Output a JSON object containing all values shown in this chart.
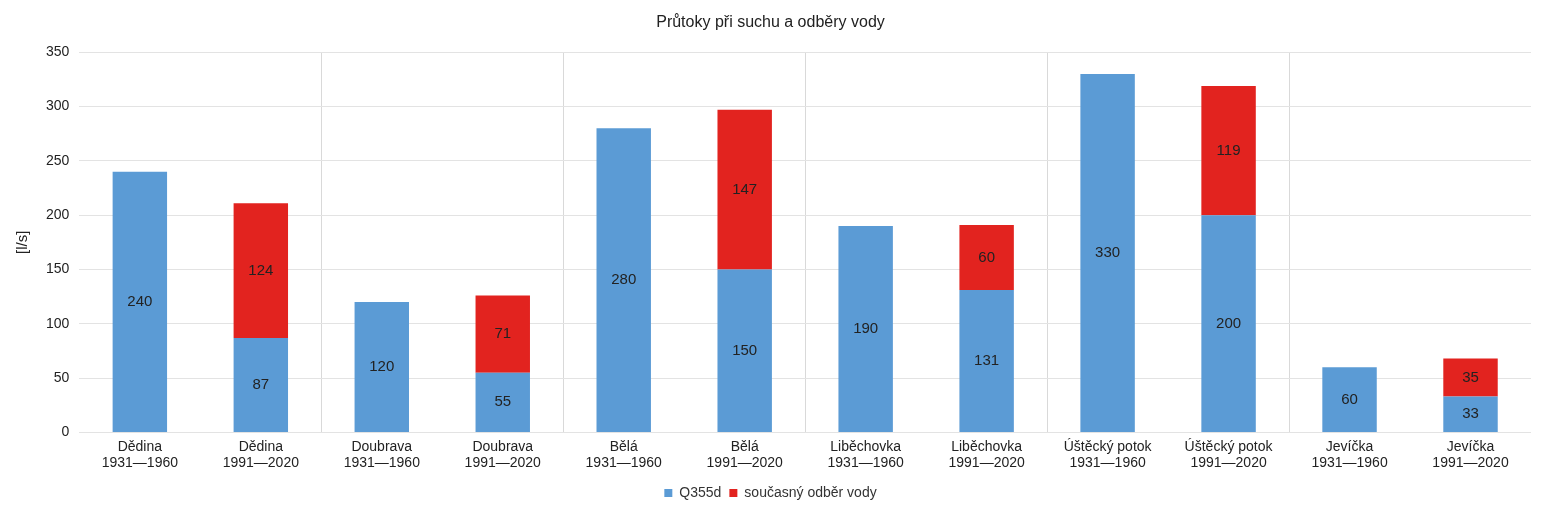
{
  "chart_data": {
    "type": "bar",
    "title": "Průtoky při suchu a odběry vody",
    "ylabel": "[l/s]",
    "categories": [
      "Dědina\n1931—1960",
      "Dědina\n1991—2020",
      "Doubrava\n1931—1960",
      "Doubrava\n1991—2020",
      "Bělá\n1931—1960",
      "Bělá\n1991—2020",
      "Liběchovka\n1931—1960",
      "Liběchovka\n1991—2020",
      "Úštěcký potok\n1931—1960",
      "Úštěcký potok\n1991—2020",
      "Jevíčka\n1931—1960",
      "Jevíčka\n1991—2020"
    ],
    "series": [
      {
        "name": "Q355d",
        "color": "#5b9bd5",
        "values": [
          240,
          87,
          120,
          55,
          280,
          150,
          190,
          131,
          330,
          200,
          60,
          33
        ]
      },
      {
        "name": "současný odběr vody",
        "color": "#e2231f",
        "values": [
          null,
          124,
          null,
          71,
          null,
          147,
          null,
          60,
          null,
          119,
          null,
          35
        ]
      }
    ],
    "stacked": true,
    "data_labels": true,
    "ylim": [
      0,
      350
    ],
    "yticks": [
      0,
      50,
      100,
      150,
      200,
      250,
      300,
      350
    ],
    "grid": true,
    "legend": "bottom"
  }
}
